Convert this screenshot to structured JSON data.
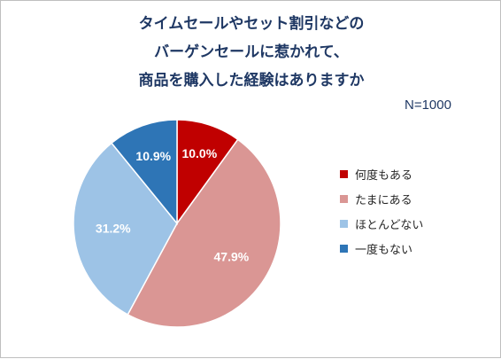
{
  "title_lines": [
    "タイムセールやセット割引などの",
    "バーゲンセールに惹かれて、",
    "商品を購入した経験はありますか"
  ],
  "sample_size": "N=1000",
  "label_color": "#ffffff",
  "chart_data": {
    "type": "pie",
    "start_angle_deg": 0,
    "direction": "clockwise",
    "legend_position": "right",
    "slices": [
      {
        "label": "何度もある",
        "value": 10.0,
        "value_text": "10.0%",
        "color": "#c00000"
      },
      {
        "label": "たまにある",
        "value": 47.9,
        "value_text": "47.9%",
        "color": "#da9694"
      },
      {
        "label": "ほとんどない",
        "value": 31.2,
        "value_text": "31.2%",
        "color": "#9dc3e6"
      },
      {
        "label": "一度もない",
        "value": 10.9,
        "value_text": "10.9%",
        "color": "#2e75b6"
      }
    ]
  }
}
